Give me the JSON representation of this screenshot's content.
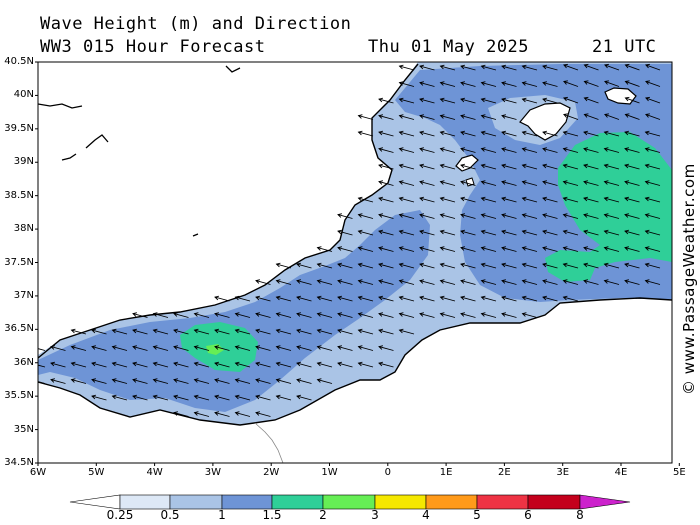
{
  "header": {
    "title_line1": "Wave Height (m) and Direction",
    "title_line2": "WW3 015 Hour Forecast",
    "date": "Thu 01 May 2025",
    "time": "21 UTC"
  },
  "credit": "© www.PassageWeather.com",
  "map": {
    "lat_labels": [
      "40.5N",
      "40N",
      "39.5N",
      "39N",
      "38.5N",
      "38N",
      "37.5N",
      "37N",
      "36.5N",
      "36N",
      "35.5N",
      "35N",
      "34.5N"
    ],
    "lon_labels": [
      "6W",
      "5W",
      "4W",
      "3W",
      "2W",
      "1W",
      "0",
      "1E",
      "2E",
      "3E",
      "4E",
      "5E"
    ],
    "colors": {
      "land": "#ffffff",
      "sea_0_5_1": "#aac4e6",
      "sea_1_1_5": "#6e94d6",
      "sea_1_5_2": "#2fcf98",
      "sea_2_3": "#66ee55",
      "coastline": "#000000",
      "arrows": "#000000"
    },
    "wave_direction": "toward west-southwest"
  },
  "colorbar": {
    "labels": [
      "0.25",
      "0.5",
      "1",
      "1.5",
      "2",
      "3",
      "4",
      "5",
      "6",
      "8"
    ],
    "colors": [
      "#ffffff",
      "#dde8f6",
      "#aac4e6",
      "#6e94d6",
      "#2fcf98",
      "#66ee55",
      "#f5e800",
      "#ff9a1a",
      "#ee3344",
      "#c4001c",
      "#cc22cc"
    ]
  }
}
